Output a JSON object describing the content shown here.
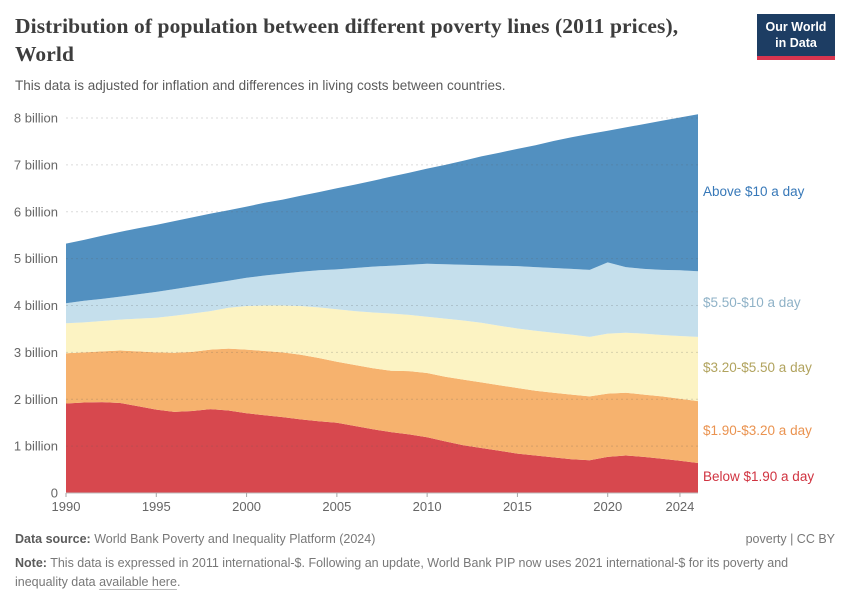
{
  "header": {
    "title": "Distribution of population between different poverty lines (2011 prices), World",
    "subtitle": "This data is adjusted for inflation and differences in living costs between countries.",
    "logo": {
      "line1": "Our World",
      "line2": "in Data"
    }
  },
  "chart_data": {
    "type": "area",
    "stacked": true,
    "title": "Distribution of population between different poverty lines (2011 prices), World",
    "unit": "billion people",
    "grid": "horizontal-dashed",
    "legend_position": "right-edge-labels",
    "ylim": [
      0,
      8.11
    ],
    "x_range": [
      1990,
      2025
    ],
    "x": [
      1990,
      1991,
      1992,
      1993,
      1994,
      1995,
      1996,
      1997,
      1998,
      1999,
      2000,
      2001,
      2002,
      2003,
      2004,
      2005,
      2006,
      2007,
      2008,
      2009,
      2010,
      2011,
      2012,
      2013,
      2014,
      2015,
      2016,
      2017,
      2018,
      2019,
      2020,
      2021,
      2022,
      2023,
      2024,
      2025
    ],
    "xticks": [
      1990,
      1995,
      2000,
      2005,
      2010,
      2015,
      2020,
      2024
    ],
    "yticks": [
      {
        "v": 0,
        "label": "0"
      },
      {
        "v": 1,
        "label": "1 billion"
      },
      {
        "v": 2,
        "label": "2 billion"
      },
      {
        "v": 3,
        "label": "3 billion"
      },
      {
        "v": 4,
        "label": "4 billion"
      },
      {
        "v": 5,
        "label": "5 billion"
      },
      {
        "v": 6,
        "label": "6 billion"
      },
      {
        "v": 7,
        "label": "7 billion"
      },
      {
        "v": 8,
        "label": "8 billion"
      }
    ],
    "series": [
      {
        "name": "Below $1.90 a day",
        "color": "#d7484e",
        "label_color": "#d03340",
        "values": [
          1.91,
          1.93,
          1.94,
          1.92,
          1.85,
          1.78,
          1.73,
          1.75,
          1.79,
          1.76,
          1.7,
          1.66,
          1.62,
          1.57,
          1.53,
          1.5,
          1.43,
          1.36,
          1.3,
          1.25,
          1.19,
          1.1,
          1.02,
          0.96,
          0.9,
          0.84,
          0.8,
          0.76,
          0.72,
          0.7,
          0.77,
          0.8,
          0.77,
          0.73,
          0.69,
          0.64
        ]
      },
      {
        "name": "$1.90-$3.20 a day",
        "color": "#f6b26e",
        "label_color": "#ea9350",
        "values": [
          1.07,
          1.07,
          1.08,
          1.12,
          1.17,
          1.22,
          1.26,
          1.26,
          1.27,
          1.32,
          1.36,
          1.37,
          1.38,
          1.38,
          1.35,
          1.3,
          1.3,
          1.3,
          1.31,
          1.35,
          1.37,
          1.38,
          1.4,
          1.4,
          1.4,
          1.4,
          1.38,
          1.38,
          1.38,
          1.36,
          1.35,
          1.34,
          1.33,
          1.33,
          1.32,
          1.32
        ]
      },
      {
        "name": "$3.20-$5.50 a day",
        "color": "#fcf3c3",
        "label_color": "#b1a35e",
        "values": [
          0.64,
          0.64,
          0.65,
          0.66,
          0.7,
          0.74,
          0.79,
          0.82,
          0.82,
          0.87,
          0.93,
          0.97,
          1.0,
          1.04,
          1.08,
          1.12,
          1.15,
          1.19,
          1.22,
          1.2,
          1.2,
          1.24,
          1.26,
          1.27,
          1.27,
          1.27,
          1.28,
          1.28,
          1.28,
          1.27,
          1.28,
          1.28,
          1.3,
          1.31,
          1.34,
          1.37
        ]
      },
      {
        "name": "$5.50-$10 a day",
        "color": "#c5dfec",
        "label_color": "#8fb2c7",
        "values": [
          0.43,
          0.46,
          0.47,
          0.49,
          0.52,
          0.55,
          0.57,
          0.58,
          0.59,
          0.58,
          0.6,
          0.64,
          0.68,
          0.73,
          0.79,
          0.85,
          0.92,
          0.98,
          1.02,
          1.07,
          1.13,
          1.16,
          1.19,
          1.23,
          1.28,
          1.33,
          1.36,
          1.38,
          1.4,
          1.43,
          1.52,
          1.4,
          1.38,
          1.39,
          1.4,
          1.4
        ]
      },
      {
        "name": "Above $10 a day",
        "color": "#5290c0",
        "label_color": "#3778b8",
        "values": [
          1.27,
          1.3,
          1.35,
          1.38,
          1.41,
          1.43,
          1.45,
          1.47,
          1.49,
          1.5,
          1.52,
          1.55,
          1.58,
          1.62,
          1.67,
          1.73,
          1.78,
          1.83,
          1.9,
          1.96,
          2.03,
          2.12,
          2.22,
          2.32,
          2.41,
          2.5,
          2.6,
          2.71,
          2.81,
          2.9,
          2.81,
          2.98,
          3.09,
          3.18,
          3.26,
          3.35
        ]
      }
    ],
    "style": {
      "grid_color": "#5b5b5b",
      "axis_text_color": "#666666",
      "baseline_color": "#bdbdbd",
      "tick_color": "#a5a5a5"
    }
  },
  "footer": {
    "datasource_label": "Data source:",
    "datasource_text": " World Bank Poverty and Inequality Platform (2024)",
    "rights": "poverty | CC BY",
    "note_label": "Note:",
    "note_text": " This data is expressed in 2011 international-$. Following an update, World Bank PIP now uses 2021 international-$ for its poverty and inequality data ",
    "note_link": "available here",
    "note_suffix": "."
  }
}
